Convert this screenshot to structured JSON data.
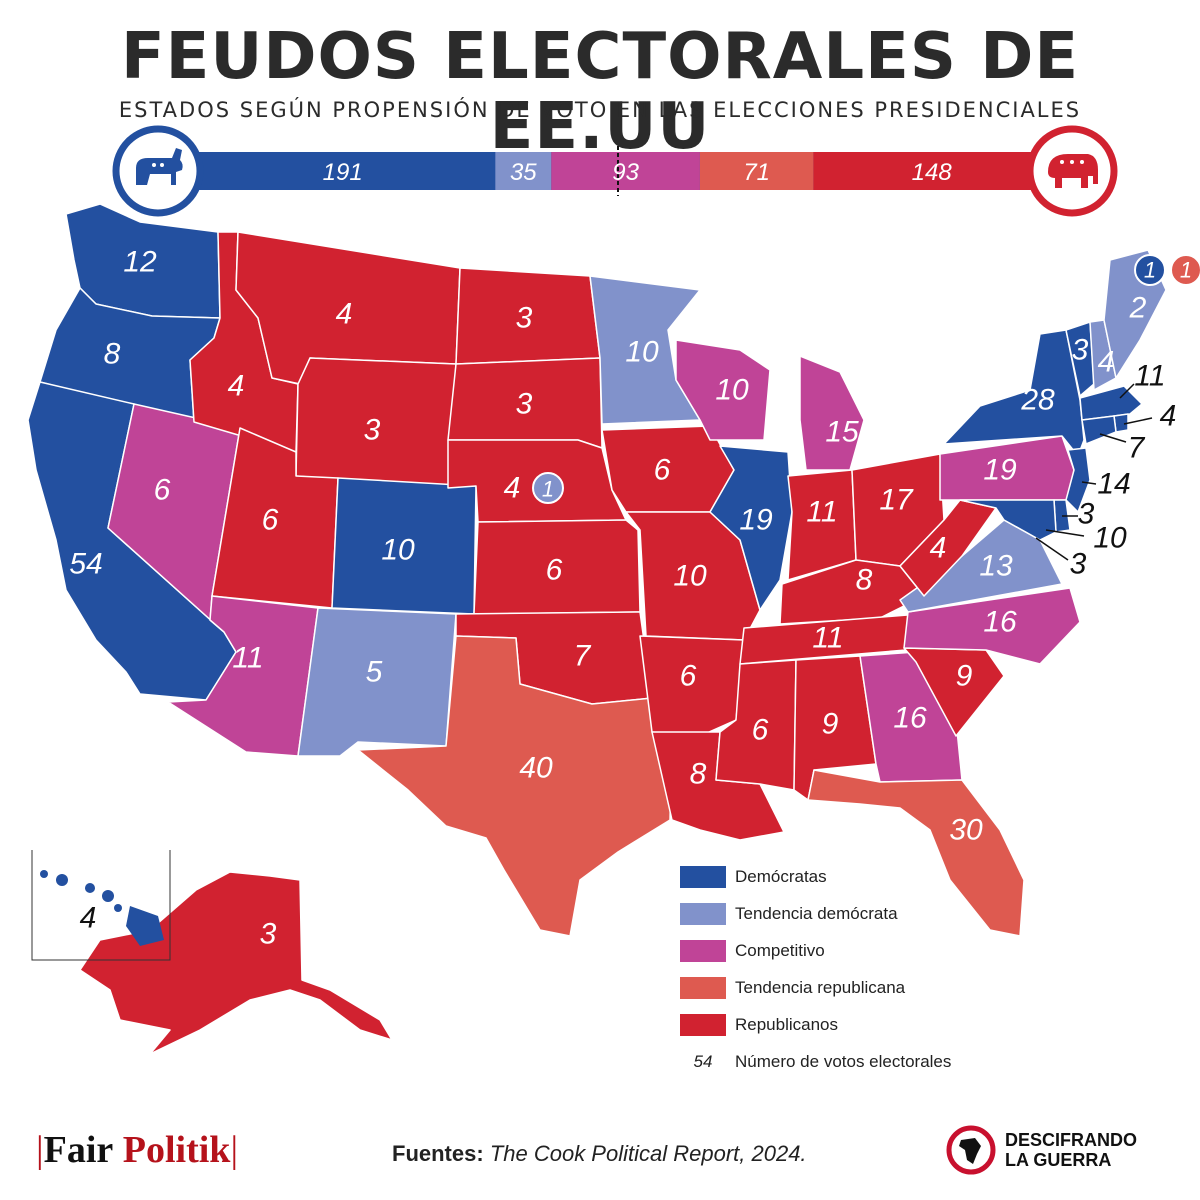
{
  "title": "FEUDOS ELECTORALES DE EE.UU",
  "subtitle": "ESTADOS SEGÚN PROPENSIÓN DE VOTO EN LAS ELECCIONES PRESIDENCIALES",
  "colors": {
    "democratas": "#2350a0",
    "tendencia_democrata": "#8192cb",
    "competitivo": "#c04497",
    "tendencia_republicana": "#de5a50",
    "republicanos": "#d12230"
  },
  "summary_bar": {
    "segments": [
      {
        "category": "democratas",
        "value": "191"
      },
      {
        "category": "tendencia_democrata",
        "value": "35"
      },
      {
        "category": "competitivo",
        "value": "93"
      },
      {
        "category": "tendencia_republicana",
        "value": "71"
      },
      {
        "category": "republicanos",
        "value": "148"
      }
    ],
    "left_icon": "donkey-icon",
    "right_icon": "elephant-icon"
  },
  "states": {
    "WA": "12",
    "OR": "8",
    "CA": "54",
    "NV": "6",
    "ID": "4",
    "MT": "4",
    "WY": "3",
    "UT": "6",
    "CO": "10",
    "AZ": "11",
    "NM": "5",
    "ND": "3",
    "SD": "3",
    "NE": "4",
    "NE2": "1",
    "KS": "6",
    "OK": "7",
    "TX": "40",
    "MN": "10",
    "IA": "6",
    "MO": "10",
    "AR": "6",
    "LA": "8",
    "WI": "10",
    "IL": "19",
    "MI": "15",
    "IN": "11",
    "OH": "17",
    "KY": "8",
    "TN": "11",
    "MS": "6",
    "AL": "9",
    "GA": "16",
    "FL": "30",
    "SC": "9",
    "NC": "16",
    "VA": "13",
    "WV": "4",
    "PA": "19",
    "NY": "28",
    "VT": "3",
    "NH": "4",
    "ME": "2",
    "ME1": "1",
    "ME2": "1",
    "MA": "11",
    "RI": "4",
    "CT": "7",
    "NJ": "14",
    "DE": "3",
    "MD": "10",
    "DC": "3",
    "AK": "3",
    "HI": "4"
  },
  "legend": [
    {
      "color_key": "democratas",
      "label": "Demócratas"
    },
    {
      "color_key": "tendencia_democrata",
      "label": "Tendencia demócrata"
    },
    {
      "color_key": "competitivo",
      "label": "Competitivo"
    },
    {
      "color_key": "tendencia_republicana",
      "label": "Tendencia republicana"
    },
    {
      "color_key": "republicanos",
      "label": "Republicanos"
    }
  ],
  "legend_number": {
    "sample": "54",
    "label": "Número de votos electorales"
  },
  "footer": {
    "brand_fair": "Fair",
    "brand_politik": "Politik",
    "source_label": "Fuentes:",
    "source_text": "The Cook Political Report, 2024.",
    "partner_line1": "DESCIFRANDO",
    "partner_line2": "LA GUERRA"
  }
}
